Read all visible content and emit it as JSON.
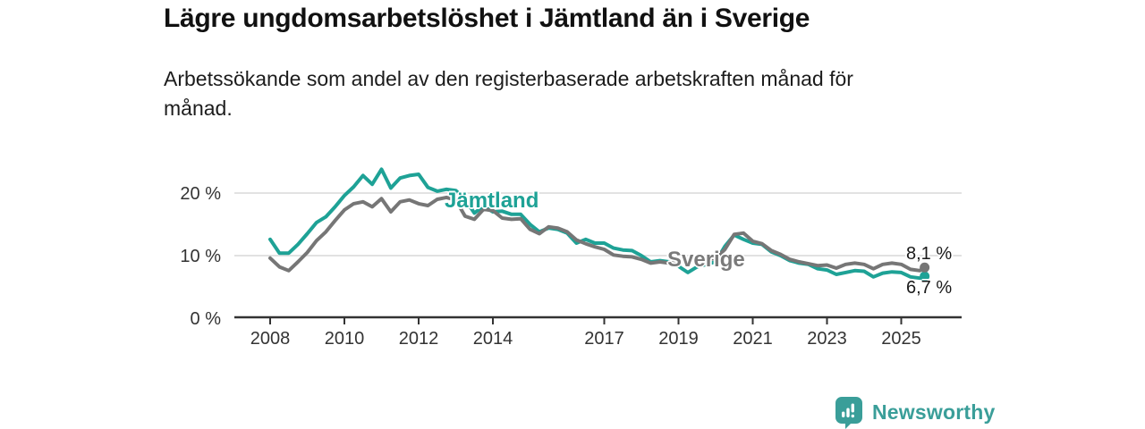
{
  "header": {
    "title": "Lägre ungdomsarbetslöshet i Jämtland än i Sverige",
    "subtitle": "Arbetssökande som andel av den registerbaserade arbetskraften månad för månad.",
    "subtitle_lines": [
      "Arbetssökande som andel av den registerbaserade arbetskraften månad för",
      "månad."
    ]
  },
  "branding": {
    "name": "Newsworthy",
    "color": "#3a9e99",
    "icon": "bar-chart-speech-bubble-icon"
  },
  "colors": {
    "jamtland": "#1ea296",
    "sverige": "#767676",
    "grid": "#d9d9d9",
    "axis": "#333333",
    "tick_text": "#333333",
    "title_text": "#111111"
  },
  "chart_data": {
    "type": "line",
    "title": "Lägre ungdomsarbetslöshet i Jämtland än i Sverige",
    "subtitle": "Arbetssökande som andel av den registerbaserade arbetskraften månad för månad.",
    "y_unit": "%",
    "ylim": [
      0,
      26
    ],
    "xlim": [
      2007.0,
      2026.6
    ],
    "grid": "horizontal",
    "legend": "inline-series-labels",
    "frequency": "monthly (values approximated quarterly from plot)",
    "x": [
      2008.0,
      2008.25,
      2008.5,
      2008.75,
      2009.0,
      2009.25,
      2009.5,
      2009.75,
      2010.0,
      2010.25,
      2010.5,
      2010.75,
      2011.0,
      2011.25,
      2011.5,
      2011.75,
      2012.0,
      2012.25,
      2012.5,
      2012.75,
      2013.0,
      2013.25,
      2013.5,
      2013.75,
      2014.0,
      2014.25,
      2014.5,
      2014.75,
      2015.0,
      2015.25,
      2015.5,
      2015.75,
      2016.0,
      2016.25,
      2016.5,
      2016.75,
      2017.0,
      2017.25,
      2017.5,
      2017.75,
      2018.0,
      2018.25,
      2018.5,
      2018.75,
      2019.0,
      2019.25,
      2019.5,
      2019.75,
      2020.0,
      2020.25,
      2020.5,
      2020.75,
      2021.0,
      2021.25,
      2021.5,
      2021.75,
      2022.0,
      2022.25,
      2022.5,
      2022.75,
      2023.0,
      2023.25,
      2023.5,
      2023.75,
      2024.0,
      2024.25,
      2024.5,
      2024.75,
      2025.0,
      2025.25,
      2025.5,
      2025.63
    ],
    "series": [
      {
        "name": "Jämtland",
        "color": "#1ea296",
        "end_value": 6.7,
        "end_label": "6,7 %",
        "values": [
          12.6,
          10.4,
          10.4,
          11.8,
          13.5,
          15.3,
          16.2,
          17.8,
          19.6,
          21.0,
          22.8,
          21.4,
          23.8,
          20.8,
          22.4,
          22.8,
          23.0,
          20.9,
          20.3,
          20.6,
          20.4,
          19.0,
          16.8,
          17.9,
          17.0,
          17.1,
          16.6,
          16.6,
          15.0,
          13.8,
          14.4,
          14.2,
          13.6,
          12.0,
          12.6,
          12.0,
          12.0,
          11.2,
          10.9,
          10.8,
          10.0,
          9.0,
          9.2,
          9.0,
          8.3,
          7.3,
          8.2,
          8.6,
          9.0,
          11.5,
          13.3,
          12.6,
          12.0,
          11.8,
          10.6,
          10.0,
          9.2,
          8.8,
          8.6,
          7.9,
          7.7,
          7.0,
          7.3,
          7.6,
          7.5,
          6.6,
          7.2,
          7.4,
          7.3,
          6.6,
          6.4,
          6.7
        ]
      },
      {
        "name": "Sverige",
        "color": "#767676",
        "end_value": 8.1,
        "end_label": "8,1 %",
        "values": [
          9.6,
          8.2,
          7.6,
          9.0,
          10.5,
          12.4,
          13.8,
          15.6,
          17.3,
          18.3,
          18.6,
          17.8,
          19.1,
          17.0,
          18.6,
          18.9,
          18.3,
          18.0,
          19.0,
          19.3,
          18.9,
          16.3,
          15.8,
          17.4,
          17.2,
          16.0,
          15.8,
          15.9,
          14.2,
          13.5,
          14.6,
          14.4,
          13.8,
          12.5,
          11.9,
          11.4,
          11.0,
          10.1,
          9.9,
          9.8,
          9.4,
          8.8,
          9.0,
          8.8,
          9.0,
          9.4,
          9.2,
          9.3,
          9.6,
          11.0,
          13.4,
          13.6,
          12.3,
          11.9,
          10.8,
          10.2,
          9.4,
          9.0,
          8.7,
          8.4,
          8.5,
          8.0,
          8.6,
          8.8,
          8.6,
          7.9,
          8.6,
          8.8,
          8.6,
          7.8,
          7.6,
          8.1
        ]
      }
    ],
    "yticks": [
      {
        "value": 0,
        "label": "0 %"
      },
      {
        "value": 10,
        "label": "10 %"
      },
      {
        "value": 20,
        "label": "20 %"
      }
    ],
    "xticks": [
      {
        "value": 2008,
        "label": "2008"
      },
      {
        "value": 2010,
        "label": "2010"
      },
      {
        "value": 2012,
        "label": "2012"
      },
      {
        "value": 2014,
        "label": "2014"
      },
      {
        "value": 2017,
        "label": "2017"
      },
      {
        "value": 2019,
        "label": "2019"
      },
      {
        "value": 2021,
        "label": "2021"
      },
      {
        "value": 2023,
        "label": "2023"
      },
      {
        "value": 2025,
        "label": "2025"
      }
    ]
  }
}
